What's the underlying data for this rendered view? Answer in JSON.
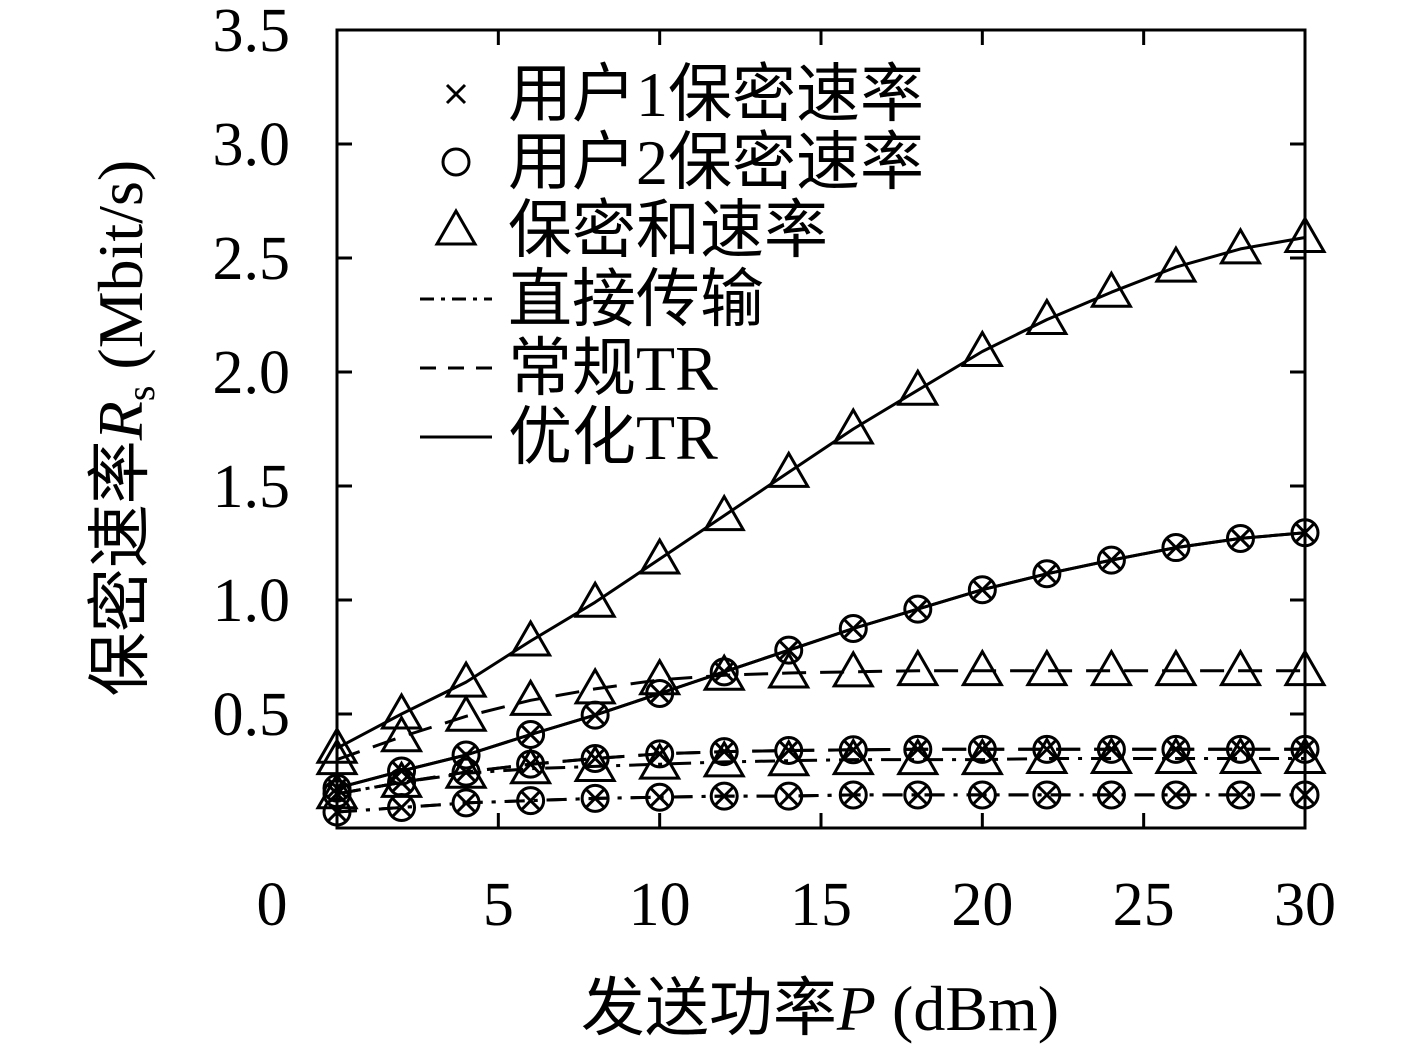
{
  "chart_data": {
    "type": "line",
    "xlabel": {
      "prefix": "发送功率",
      "symbol": "P",
      "unit": "(dBm)"
    },
    "ylabel": {
      "prefix": "保密速率",
      "symbol": "R",
      "subscript": "s",
      "unit": "(Mbit/s)"
    },
    "xlim": [
      0,
      30
    ],
    "ylim": [
      0,
      3.5
    ],
    "xtick_labels": [
      "0",
      "5",
      "10",
      "15",
      "20",
      "25",
      "30"
    ],
    "ytick_labels": [
      "0.5",
      "1.0",
      "1.5",
      "2.0",
      "2.5",
      "3.0",
      "3.5"
    ],
    "grid": false,
    "legend_position": "top-left",
    "x": [
      0,
      2,
      4,
      6,
      8,
      10,
      12,
      14,
      16,
      18,
      20,
      22,
      24,
      26,
      28,
      30
    ],
    "metrics": [
      {
        "label": "用户1保密速率",
        "marker": "cross"
      },
      {
        "label": "用户2保密速率",
        "marker": "circle"
      },
      {
        "label": "保密和速率",
        "marker": "triangle"
      }
    ],
    "schemes": [
      {
        "label": "直接传输",
        "line_style": "dash-dot"
      },
      {
        "label": "常规TR",
        "line_style": "dashed"
      },
      {
        "label": "优化TR",
        "line_style": "solid"
      }
    ],
    "series": [
      {
        "scheme": 0,
        "metric": 0,
        "values": [
          0.07,
          0.09,
          0.11,
          0.12,
          0.13,
          0.135,
          0.14,
          0.14,
          0.145,
          0.145,
          0.145,
          0.145,
          0.145,
          0.145,
          0.145,
          0.145
        ]
      },
      {
        "scheme": 0,
        "metric": 1,
        "values": [
          0.07,
          0.09,
          0.11,
          0.12,
          0.13,
          0.135,
          0.14,
          0.14,
          0.145,
          0.145,
          0.145,
          0.145,
          0.145,
          0.145,
          0.145,
          0.145
        ]
      },
      {
        "scheme": 0,
        "metric": 2,
        "values": [
          0.15,
          0.2,
          0.24,
          0.26,
          0.27,
          0.28,
          0.29,
          0.295,
          0.3,
          0.3,
          0.3,
          0.305,
          0.305,
          0.305,
          0.305,
          0.305
        ]
      },
      {
        "scheme": 1,
        "metric": 0,
        "values": [
          0.15,
          0.2,
          0.245,
          0.28,
          0.305,
          0.325,
          0.335,
          0.34,
          0.343,
          0.345,
          0.345,
          0.345,
          0.345,
          0.345,
          0.345,
          0.345
        ]
      },
      {
        "scheme": 1,
        "metric": 1,
        "values": [
          0.15,
          0.2,
          0.245,
          0.28,
          0.305,
          0.325,
          0.335,
          0.34,
          0.343,
          0.345,
          0.345,
          0.345,
          0.345,
          0.345,
          0.345,
          0.345
        ]
      },
      {
        "scheme": 1,
        "metric": 2,
        "values": [
          0.3,
          0.4,
          0.49,
          0.56,
          0.61,
          0.65,
          0.67,
          0.68,
          0.685,
          0.69,
          0.69,
          0.69,
          0.69,
          0.69,
          0.69,
          0.69
        ]
      },
      {
        "scheme": 2,
        "metric": 0,
        "values": [
          0.175,
          0.25,
          0.32,
          0.41,
          0.495,
          0.59,
          0.685,
          0.78,
          0.875,
          0.96,
          1.045,
          1.115,
          1.175,
          1.23,
          1.27,
          1.295
        ]
      },
      {
        "scheme": 2,
        "metric": 1,
        "values": [
          0.175,
          0.25,
          0.32,
          0.41,
          0.495,
          0.59,
          0.685,
          0.78,
          0.875,
          0.96,
          1.045,
          1.115,
          1.175,
          1.23,
          1.27,
          1.295
        ]
      },
      {
        "scheme": 2,
        "metric": 2,
        "values": [
          0.35,
          0.5,
          0.64,
          0.82,
          0.99,
          1.18,
          1.37,
          1.56,
          1.75,
          1.92,
          2.09,
          2.23,
          2.35,
          2.46,
          2.54,
          2.59
        ]
      }
    ]
  }
}
